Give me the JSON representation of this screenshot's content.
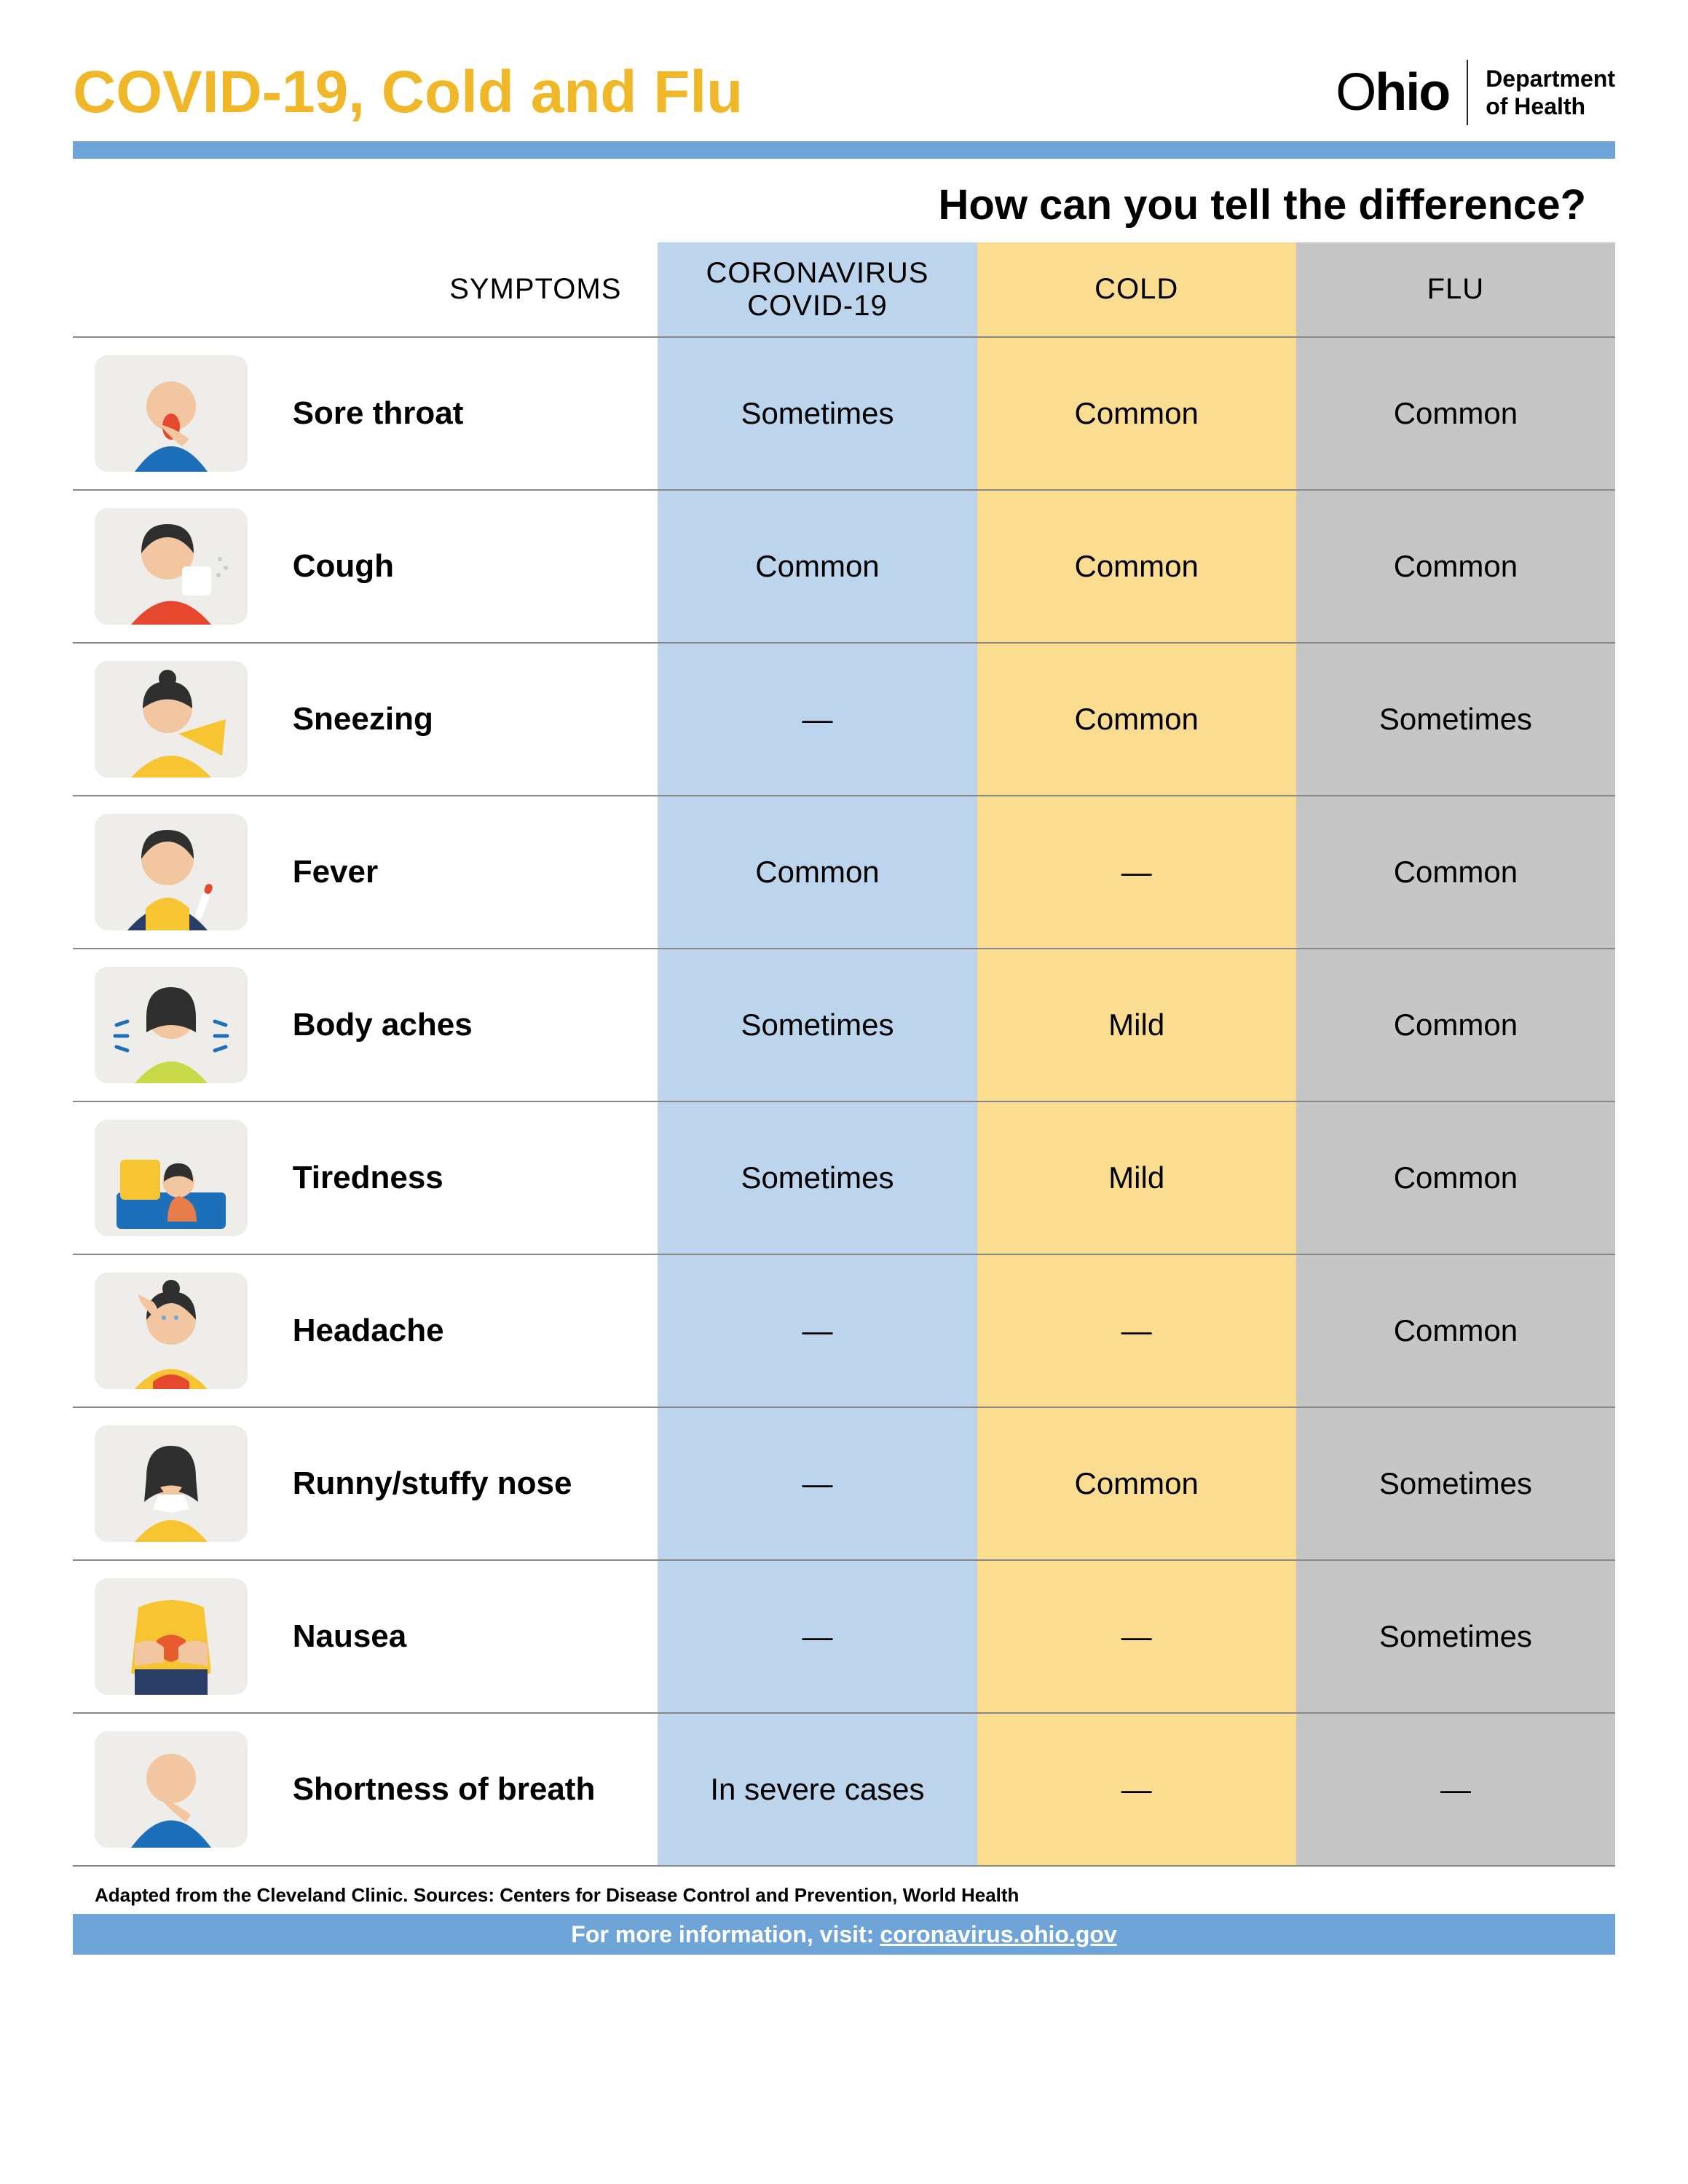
{
  "colors": {
    "title": "#f0b828",
    "bar_blue": "#6ea4d8",
    "col_covid_bg": "#bcd5ec",
    "col_cold_bg": "#fbdd91",
    "col_flu_bg": "#c6c6c6",
    "icon_bg": "#eeede9",
    "text": "#111111",
    "row_border": "#888888",
    "footer_bg": "#6ea4d8",
    "icon_blue": "#1d6fba",
    "icon_dark_blue": "#2a3d66",
    "icon_yellow": "#f7c531",
    "icon_red": "#e5482e",
    "icon_skin": "#f2c6a0",
    "icon_hair": "#2f2f2f"
  },
  "header": {
    "title": "COVID-19, Cold and Flu",
    "logo_state": "Ohio",
    "logo_dept_line1": "Department",
    "logo_dept_line2": "of Health"
  },
  "subtitle": "How can you tell the difference?",
  "table": {
    "columns": [
      "SYMPTOMS",
      "CORONAVIRUS\nCOVID-19",
      "COLD",
      "FLU"
    ],
    "rows": [
      {
        "symptom": "Sore throat",
        "covid": "Sometimes",
        "cold": "Common",
        "flu": "Common"
      },
      {
        "symptom": "Cough",
        "covid": "Common",
        "cold": "Common",
        "flu": "Common"
      },
      {
        "symptom": "Sneezing",
        "covid": "—",
        "cold": "Common",
        "flu": "Sometimes"
      },
      {
        "symptom": "Fever",
        "covid": "Common",
        "cold": "—",
        "flu": "Common"
      },
      {
        "symptom": "Body aches",
        "covid": "Sometimes",
        "cold": "Mild",
        "flu": "Common"
      },
      {
        "symptom": "Tiredness",
        "covid": "Sometimes",
        "cold": "Mild",
        "flu": "Common"
      },
      {
        "symptom": "Headache",
        "covid": "—",
        "cold": "—",
        "flu": "Common"
      },
      {
        "symptom": "Runny/stuffy nose",
        "covid": "—",
        "cold": "Common",
        "flu": "Sometimes"
      },
      {
        "symptom": "Nausea",
        "covid": "—",
        "cold": "—",
        "flu": "Sometimes"
      },
      {
        "symptom": "Shortness of breath",
        "covid": "In severe cases",
        "cold": "—",
        "flu": "—"
      }
    ]
  },
  "footnote": "Adapted from the Cleveland Clinic. Sources: Centers for Disease Control and Prevention, World Health",
  "footer": {
    "text": "For more information, visit:",
    "link": "coronavirus.ohio.gov"
  }
}
